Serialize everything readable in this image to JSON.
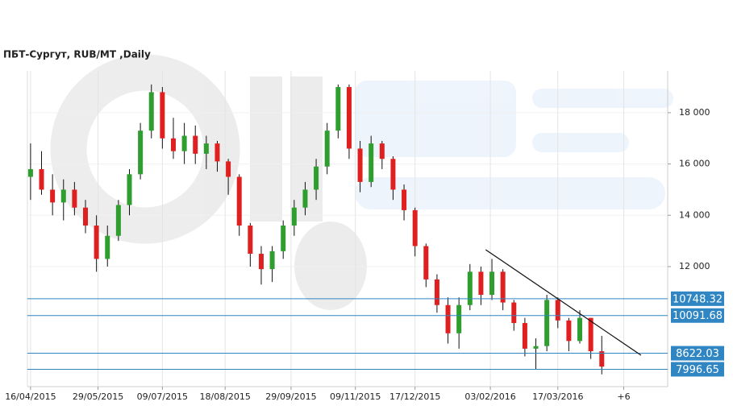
{
  "chart_data": {
    "type": "candlestick",
    "title": "ПБТ-Сургут,  RUB/MT ,Daily",
    "x": [
      "2015-04-16",
      "2015-04-23",
      "2015-04-30",
      "2015-05-07",
      "2015-05-14",
      "2015-05-21",
      "2015-05-28",
      "2015-06-04",
      "2015-06-11",
      "2015-06-18",
      "2015-06-25",
      "2015-07-02",
      "2015-07-09",
      "2015-07-16",
      "2015-07-23",
      "2015-07-30",
      "2015-08-06",
      "2015-08-13",
      "2015-08-20",
      "2015-08-27",
      "2015-09-03",
      "2015-09-10",
      "2015-09-17",
      "2015-09-24",
      "2015-10-01",
      "2015-10-08",
      "2015-10-15",
      "2015-10-22",
      "2015-10-29",
      "2015-11-05",
      "2015-11-12",
      "2015-11-19",
      "2015-11-26",
      "2015-12-03",
      "2015-12-10",
      "2015-12-17",
      "2015-12-24",
      "2015-12-31",
      "2016-01-07",
      "2016-01-14",
      "2016-01-21",
      "2016-01-28",
      "2016-02-04",
      "2016-02-11",
      "2016-02-18",
      "2016-02-25",
      "2016-03-03",
      "2016-03-10",
      "2016-03-17",
      "2016-03-24",
      "2016-03-31",
      "2016-04-07",
      "2016-04-14"
    ],
    "open": [
      15500,
      15800,
      15000,
      14500,
      15000,
      14300,
      13600,
      12300,
      13200,
      14400,
      15600,
      17300,
      18800,
      17000,
      16500,
      17100,
      16400,
      16800,
      16100,
      15500,
      13600,
      12500,
      11900,
      12600,
      13600,
      14300,
      15000,
      15900,
      17300,
      19000,
      16600,
      15300,
      16800,
      16200,
      15000,
      14200,
      12800,
      11500,
      10500,
      9400,
      10500,
      11800,
      10900,
      11800,
      10600,
      9800,
      8800,
      8900,
      10700,
      9900,
      9100,
      10000,
      8700
    ],
    "high": [
      16800,
      16500,
      15600,
      15400,
      15300,
      14600,
      14000,
      13600,
      14600,
      15800,
      17600,
      19100,
      19000,
      17800,
      17600,
      17500,
      17100,
      16900,
      16200,
      15600,
      13700,
      12800,
      12800,
      13800,
      14600,
      15300,
      16200,
      17600,
      19100,
      19100,
      16900,
      17100,
      16900,
      16300,
      15200,
      14300,
      12900,
      11700,
      10800,
      10800,
      12100,
      12000,
      12300,
      11900,
      10700,
      10000,
      9200,
      10900,
      10800,
      10000,
      10300,
      10000,
      9300
    ],
    "low": [
      14600,
      14800,
      14000,
      13800,
      14000,
      13300,
      11800,
      12000,
      13000,
      14000,
      15400,
      17000,
      16600,
      16200,
      16000,
      16000,
      15800,
      15700,
      14800,
      13200,
      12000,
      11300,
      11400,
      12300,
      13200,
      14000,
      14600,
      15600,
      17000,
      16200,
      14900,
      15100,
      15800,
      14600,
      13800,
      12400,
      11200,
      10200,
      9000,
      8800,
      10300,
      10500,
      10700,
      10300,
      9500,
      8500,
      8000,
      8700,
      9600,
      8700,
      9000,
      8400,
      7800
    ],
    "close": [
      15800,
      15000,
      14500,
      15000,
      14300,
      13600,
      12300,
      13200,
      14400,
      15600,
      17300,
      18800,
      17000,
      16500,
      17100,
      16400,
      16800,
      16100,
      15500,
      13600,
      12500,
      11900,
      12600,
      13600,
      14300,
      15000,
      15900,
      17300,
      19000,
      16600,
      15300,
      16800,
      16200,
      15000,
      14200,
      12800,
      11500,
      10500,
      9400,
      10500,
      11800,
      10900,
      11800,
      10600,
      9800,
      8800,
      8900,
      10700,
      9900,
      9100,
      10000,
      8700,
      8100
    ],
    "up_color": "#2e9e2e",
    "down_color": "#e02020",
    "xlim": [
      "2015-04-14",
      "2016-05-26"
    ],
    "xticks": [
      {
        "value": "2015-04-16",
        "label": "16/04/2015"
      },
      {
        "value": "2015-05-29",
        "label": "29/05/2015"
      },
      {
        "value": "2015-07-09",
        "label": "09/07/2015"
      },
      {
        "value": "2015-08-18",
        "label": "18/08/2015"
      },
      {
        "value": "2015-09-29",
        "label": "29/09/2015"
      },
      {
        "value": "2015-11-09",
        "label": "09/11/2015"
      },
      {
        "value": "2015-12-17",
        "label": "17/12/2015"
      },
      {
        "value": "2016-02-03",
        "label": "03/02/2016"
      },
      {
        "value": "2016-03-17",
        "label": "17/03/2016"
      },
      {
        "value": "2016-04-28",
        "label": "+6"
      }
    ],
    "ylim": [
      7320,
      19630
    ],
    "yticks": [
      {
        "value": 12000,
        "label": "12 000"
      },
      {
        "value": 14000,
        "label": "14 000"
      },
      {
        "value": 16000,
        "label": "16 000"
      },
      {
        "value": 18000,
        "label": "18 000"
      }
    ],
    "levels": [
      10748.32,
      10091.68,
      8622.03,
      7996.65
    ],
    "level_color": "#2f86c3",
    "trendline": {
      "x": [
        "2016-01-31",
        "2016-05-09"
      ],
      "y": [
        12660,
        8544
      ],
      "color": "#111111"
    }
  }
}
